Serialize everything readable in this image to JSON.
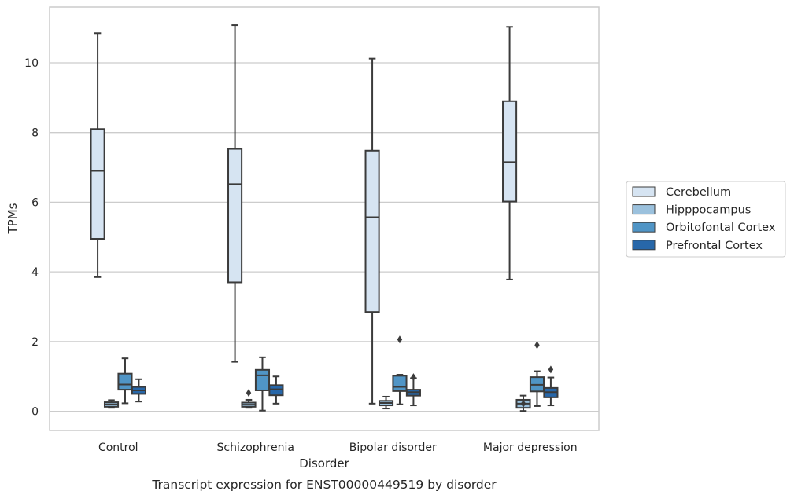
{
  "chart_data": {
    "type": "box",
    "caption": "Transcript expression for ENST00000449519 by disorder",
    "xlabel": "Disorder",
    "ylabel": "TPMs",
    "ylim": [
      -0.55,
      11.6
    ],
    "yticks": [
      0,
      2,
      4,
      6,
      8,
      10
    ],
    "grid": "horizontal",
    "legend_position": "right",
    "categories": [
      "Control",
      "Schizophrenia",
      "Bipolar disorder",
      "Major depression"
    ],
    "series": [
      {
        "name": "Cerebellum",
        "color": "#d6e4f2",
        "boxes": [
          {
            "whislo": 3.85,
            "q1": 4.95,
            "med": 6.9,
            "q3": 8.1,
            "whishi": 10.85,
            "fliers": []
          },
          {
            "whislo": 1.42,
            "q1": 3.7,
            "med": 6.52,
            "q3": 7.53,
            "whishi": 11.08,
            "fliers": []
          },
          {
            "whislo": 0.22,
            "q1": 2.85,
            "med": 5.57,
            "q3": 7.48,
            "whishi": 10.12,
            "fliers": []
          },
          {
            "whislo": 3.78,
            "q1": 6.02,
            "med": 7.15,
            "q3": 8.9,
            "whishi": 11.03,
            "fliers": []
          }
        ]
      },
      {
        "name": "Hipppocampus",
        "color": "#9bc1dd",
        "boxes": [
          {
            "whislo": 0.1,
            "q1": 0.13,
            "med": 0.2,
            "q3": 0.26,
            "whishi": 0.32,
            "fliers": []
          },
          {
            "whislo": 0.1,
            "q1": 0.13,
            "med": 0.19,
            "q3": 0.25,
            "whishi": 0.33,
            "fliers": [
              0.53
            ]
          },
          {
            "whislo": 0.08,
            "q1": 0.17,
            "med": 0.24,
            "q3": 0.3,
            "whishi": 0.42,
            "fliers": []
          },
          {
            "whislo": 0.01,
            "q1": 0.1,
            "med": 0.22,
            "q3": 0.33,
            "whishi": 0.45,
            "fliers": [
              0.22
            ]
          }
        ]
      },
      {
        "name": "Orbitofontal Cortex",
        "color": "#5095c6",
        "boxes": [
          {
            "whislo": 0.23,
            "q1": 0.62,
            "med": 0.77,
            "q3": 1.08,
            "whishi": 1.52,
            "fliers": []
          },
          {
            "whislo": 0.02,
            "q1": 0.6,
            "med": 1.03,
            "q3": 1.19,
            "whishi": 1.55,
            "fliers": []
          },
          {
            "whislo": 0.2,
            "q1": 0.58,
            "med": 0.7,
            "q3": 1.02,
            "whishi": 1.05,
            "fliers": [
              2.06
            ]
          },
          {
            "whislo": 0.15,
            "q1": 0.57,
            "med": 0.76,
            "q3": 0.98,
            "whishi": 1.15,
            "fliers": [
              1.9
            ]
          }
        ]
      },
      {
        "name": "Prefrontal Cortex",
        "color": "#2767a9",
        "boxes": [
          {
            "whislo": 0.28,
            "q1": 0.5,
            "med": 0.6,
            "q3": 0.7,
            "whishi": 0.92,
            "fliers": []
          },
          {
            "whislo": 0.22,
            "q1": 0.46,
            "med": 0.63,
            "q3": 0.75,
            "whishi": 1.0,
            "fliers": []
          },
          {
            "whislo": 0.17,
            "q1": 0.45,
            "med": 0.55,
            "q3": 0.62,
            "whishi": 0.95,
            "fliers": [
              0.98
            ]
          },
          {
            "whislo": 0.17,
            "q1": 0.4,
            "med": 0.55,
            "q3": 0.67,
            "whishi": 0.97,
            "fliers": [
              1.2
            ]
          }
        ]
      }
    ]
  }
}
